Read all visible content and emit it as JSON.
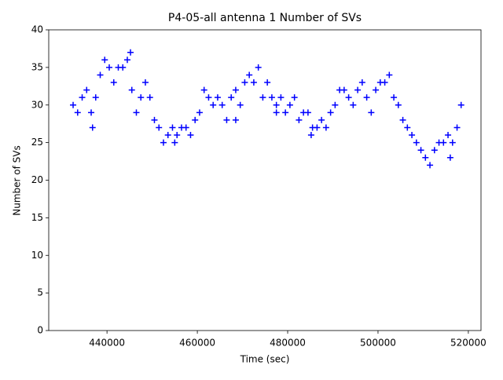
{
  "chart_data": {
    "type": "scatter",
    "title": "P4-05-all antenna 1 Number of SVs",
    "x_label": "Time (sec)",
    "y_label": "Number of SVs",
    "series": [
      {
        "name": "SVs",
        "color": "#0000ff",
        "marker": "+",
        "x": [
          432500,
          433500,
          434500,
          435500,
          436500,
          437500,
          438500,
          439500,
          440500,
          441500,
          442500,
          443500,
          444500,
          445500,
          446500,
          447500,
          448500,
          449500,
          450500,
          451500,
          452500,
          453500,
          454500,
          455500,
          456500,
          457500,
          458500,
          459500,
          460500,
          461500,
          462500,
          463500,
          464500,
          465500,
          466500,
          467500,
          468500,
          469500,
          470500,
          471500,
          472500,
          473500,
          474500,
          475500,
          476500,
          477500,
          478500,
          479500,
          480500,
          481500,
          482500,
          483500,
          484500,
          485500,
          486500,
          487500,
          488500,
          489500,
          490500,
          491500,
          492500,
          493500,
          494500,
          495500,
          496500,
          497500,
          498500,
          499500,
          500500,
          501500,
          502500,
          503500,
          504500,
          505500,
          506500,
          507500,
          508500,
          509500,
          510500,
          511500,
          512500,
          513500,
          514500,
          515500,
          516500,
          517500,
          518400,
          436800,
          455000,
          468500,
          477500,
          485200,
          516000,
          445200
        ],
        "values": [
          30,
          29,
          31,
          32,
          29,
          31,
          34,
          36,
          35,
          33,
          35,
          35,
          36,
          32,
          29,
          31,
          33,
          31,
          28,
          27,
          25,
          26,
          27,
          26,
          27,
          27,
          26,
          28,
          29,
          32,
          31,
          30,
          31,
          30,
          28,
          31,
          32,
          30,
          33,
          34,
          33,
          35,
          31,
          33,
          31,
          30,
          31,
          29,
          30,
          31,
          28,
          29,
          29,
          27,
          27,
          28,
          27,
          29,
          30,
          32,
          32,
          31,
          30,
          32,
          33,
          31,
          29,
          32,
          33,
          33,
          34,
          31,
          30,
          28,
          27,
          26,
          25,
          24,
          23,
          22,
          24,
          25,
          25,
          26,
          25,
          27,
          30,
          27,
          25,
          28,
          29,
          26,
          23,
          37
        ]
      }
    ],
    "xlim": [
      427100,
      522800
    ],
    "ylim": [
      0,
      40
    ],
    "xticks": [
      440000,
      460000,
      480000,
      500000,
      520000
    ],
    "yticks": [
      0,
      5,
      10,
      15,
      20,
      25,
      30,
      35,
      40
    ],
    "grid": false
  }
}
